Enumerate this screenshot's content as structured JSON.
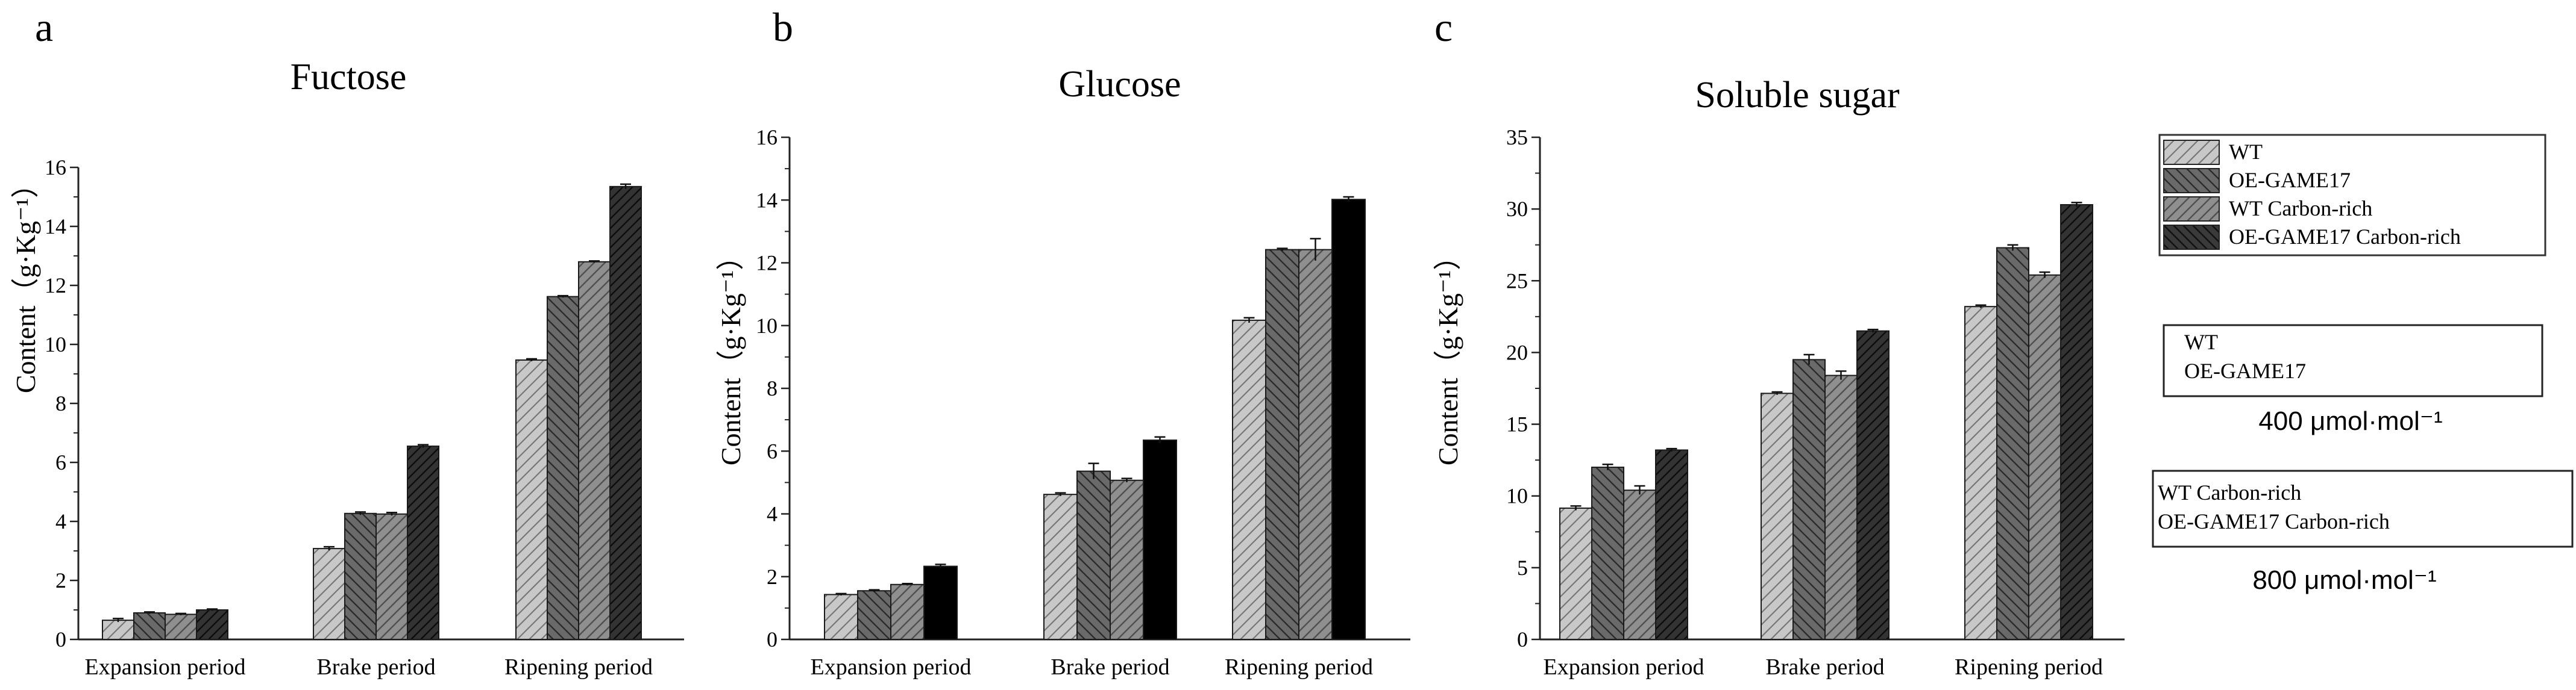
{
  "colors": {
    "WT": "#c8c8c8",
    "OE-GAME17": "#6a6a6a",
    "WT Carbon-rich": "#8f8f8f",
    "OE-GAME17 Carbon-rich": "#333333"
  },
  "legend": {
    "items": [
      "WT",
      "OE-GAME17",
      "WT Carbon-rich",
      "OE-GAME17 Carbon-rich"
    ]
  },
  "conditions": [
    {
      "lines": [
        "WT",
        "OE-GAME17"
      ],
      "concentration": "400 μmol·mol⁻¹"
    },
    {
      "lines": [
        "WT Carbon-rich",
        "OE-GAME17 Carbon-rich"
      ],
      "concentration": "800 μmol·mol⁻¹"
    }
  ],
  "chart_data": [
    {
      "panel": "a",
      "type": "bar",
      "title": "Fuctose",
      "xlabel": "",
      "ylabel": "Content（g·Kg⁻¹）",
      "ylim": [
        0,
        16
      ],
      "yticks": [
        0,
        2,
        4,
        6,
        8,
        10,
        12,
        14,
        16
      ],
      "categories": [
        "Expansion period",
        "Brake period",
        "Ripening period"
      ],
      "series": [
        {
          "name": "WT",
          "values": [
            0.65,
            3.08,
            9.47
          ],
          "errors": [
            0.06,
            0.06,
            0.04
          ]
        },
        {
          "name": "OE-GAME17",
          "values": [
            0.9,
            4.27,
            11.62
          ],
          "errors": [
            0.03,
            0.05,
            0.03
          ]
        },
        {
          "name": "WT Carbon-rich",
          "values": [
            0.85,
            4.25,
            12.8
          ],
          "errors": [
            0.03,
            0.05,
            0.03
          ]
        },
        {
          "name": "OE-GAME17 Carbon-rich",
          "values": [
            1.0,
            6.55,
            15.35
          ],
          "errors": [
            0.03,
            0.05,
            0.08
          ]
        }
      ]
    },
    {
      "panel": "b",
      "type": "bar",
      "title": "Glucose",
      "xlabel": "",
      "ylabel": "Content（g·Kg⁻¹）",
      "ylim": [
        0,
        16
      ],
      "yticks": [
        0,
        2,
        4,
        6,
        8,
        10,
        12,
        14,
        16
      ],
      "categories": [
        "Expansion period",
        "Brake period",
        "Ripening period"
      ],
      "series": [
        {
          "name": "WT",
          "values": [
            1.43,
            4.62,
            10.17
          ],
          "errors": [
            0.03,
            0.05,
            0.08
          ]
        },
        {
          "name": "OE-GAME17",
          "values": [
            1.55,
            5.36,
            12.42
          ],
          "errors": [
            0.03,
            0.25,
            0.04
          ]
        },
        {
          "name": "WT Carbon-rich",
          "values": [
            1.75,
            5.07,
            12.42
          ],
          "errors": [
            0.03,
            0.06,
            0.35
          ]
        },
        {
          "name": "OE-GAME17 Carbon-rich",
          "values": [
            2.33,
            6.35,
            14.02
          ],
          "errors": [
            0.06,
            0.1,
            0.08
          ]
        }
      ]
    },
    {
      "panel": "c",
      "type": "bar",
      "title": "Soluble sugar",
      "xlabel": "",
      "ylabel": "Content（g·Kg⁻¹）",
      "ylim": [
        0,
        35
      ],
      "yticks": [
        0,
        5,
        10,
        15,
        20,
        25,
        30,
        35
      ],
      "categories": [
        "Expansion period",
        "Brake period",
        "Ripening period"
      ],
      "series": [
        {
          "name": "WT",
          "values": [
            9.15,
            17.15,
            23.2
          ],
          "errors": [
            0.15,
            0.1,
            0.1
          ]
        },
        {
          "name": "OE-GAME17",
          "values": [
            12.0,
            19.5,
            27.3
          ],
          "errors": [
            0.2,
            0.35,
            0.2
          ]
        },
        {
          "name": "WT Carbon-rich",
          "values": [
            10.4,
            18.4,
            25.4
          ],
          "errors": [
            0.3,
            0.3,
            0.2
          ]
        },
        {
          "name": "OE-GAME17 Carbon-rich",
          "values": [
            13.2,
            21.5,
            30.3
          ],
          "errors": [
            0.1,
            0.1,
            0.15
          ]
        }
      ]
    }
  ]
}
